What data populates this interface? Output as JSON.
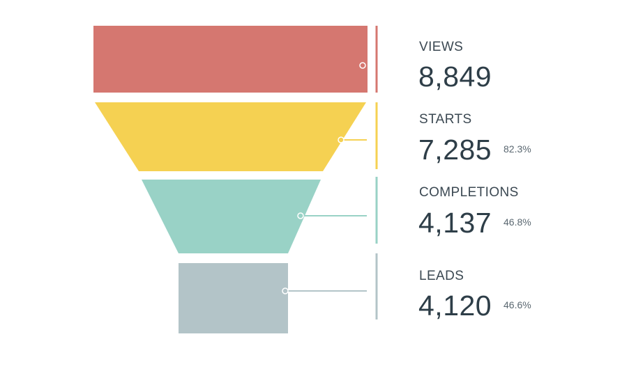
{
  "chart_data": {
    "type": "funnel",
    "stages": [
      {
        "label": "VIEWS",
        "value": 8849,
        "display": "8,849",
        "percent": "",
        "color": "#d57770"
      },
      {
        "label": "STARTS",
        "value": 7285,
        "display": "7,285",
        "percent": "82.3%",
        "color": "#f5d152"
      },
      {
        "label": "COMPLETIONS",
        "value": 4137,
        "display": "4,137",
        "percent": "46.8%",
        "color": "#99d2c6"
      },
      {
        "label": "LEADS",
        "value": 4120,
        "display": "4,120",
        "percent": "46.6%",
        "color": "#b3c4c8"
      }
    ]
  }
}
